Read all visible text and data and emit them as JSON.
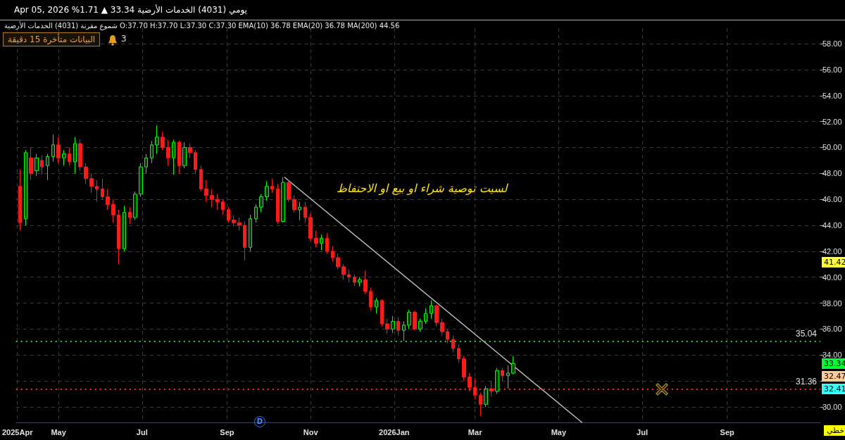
{
  "chart_data": {
    "type": "candlestick",
    "title": "يومي (4031) الخدمات الأرضية 33.34 ▲ 1.71% Apr 05, 2026",
    "subtitle": "شموع مقرنة (4031) الخدمات الأرضية O:37.70 H:37.70 L:37.30 C:37.30 EMA(10) 36.78 EMA(20) 36.78 MA(200) 44.56",
    "x": [
      "2025-04-03",
      "2025-04-07",
      "2025-04-11",
      "2025-04-15",
      "2025-04-19",
      "2025-04-23",
      "2025-04-27",
      "2025-05-01",
      "2025-05-05",
      "2025-05-09",
      "2025-05-13",
      "2025-05-17",
      "2025-05-21",
      "2025-05-25",
      "2025-05-29",
      "2025-06-02",
      "2025-06-06",
      "2025-06-10",
      "2025-06-14",
      "2025-06-18",
      "2025-06-22",
      "2025-06-26",
      "2025-06-30",
      "2025-07-04",
      "2025-07-08",
      "2025-07-12",
      "2025-07-16",
      "2025-07-20",
      "2025-07-24",
      "2025-07-28",
      "2025-08-01",
      "2025-08-05",
      "2025-08-09",
      "2025-08-13",
      "2025-08-17",
      "2025-08-21",
      "2025-08-25",
      "2025-08-29",
      "2025-09-02",
      "2025-09-06",
      "2025-09-10",
      "2025-09-14",
      "2025-09-18",
      "2025-09-22",
      "2025-09-26",
      "2025-09-30",
      "2025-10-04",
      "2025-10-08",
      "2025-10-12",
      "2025-10-16",
      "2025-10-20",
      "2025-10-24",
      "2025-10-28",
      "2025-11-01",
      "2025-11-05",
      "2025-11-09",
      "2025-11-13",
      "2025-11-17",
      "2025-11-21",
      "2025-11-25",
      "2025-11-29",
      "2025-12-03",
      "2025-12-07",
      "2025-12-11",
      "2025-12-15",
      "2025-12-19",
      "2025-12-23",
      "2025-12-27",
      "2025-12-31",
      "2026-01-04",
      "2026-01-08",
      "2026-01-12",
      "2026-01-16",
      "2026-01-20",
      "2026-01-24",
      "2026-01-28",
      "2026-02-01",
      "2026-02-05",
      "2026-02-09",
      "2026-02-13",
      "2026-02-17",
      "2026-02-21",
      "2026-02-25",
      "2026-03-01",
      "2026-03-05",
      "2026-03-09",
      "2026-03-13",
      "2026-03-17",
      "2026-03-21",
      "2026-03-25",
      "2026-03-29"
    ],
    "ohlc": [
      [
        47.0,
        48.3,
        43.6,
        44.2
      ],
      [
        44.5,
        49.8,
        44.0,
        49.6
      ],
      [
        49.2,
        50.0,
        47.5,
        48.0
      ],
      [
        48.2,
        49.5,
        47.8,
        49.2
      ],
      [
        49.0,
        49.4,
        47.9,
        48.5
      ],
      [
        48.6,
        49.5,
        47.5,
        49.3
      ],
      [
        49.3,
        51.0,
        48.9,
        50.2
      ],
      [
        50.2,
        50.8,
        48.8,
        49.2
      ],
      [
        49.2,
        49.8,
        48.6,
        49.5
      ],
      [
        49.5,
        50.0,
        48.6,
        48.9
      ],
      [
        48.9,
        50.8,
        48.0,
        50.3
      ],
      [
        50.3,
        50.6,
        48.2,
        48.5
      ],
      [
        48.5,
        48.8,
        47.2,
        47.6
      ],
      [
        47.6,
        48.0,
        46.5,
        47.0
      ],
      [
        47.0,
        47.5,
        45.8,
        46.8
      ],
      [
        46.8,
        47.6,
        46.0,
        46.2
      ],
      [
        46.2,
        46.8,
        45.2,
        45.6
      ],
      [
        45.6,
        46.0,
        44.2,
        44.8
      ],
      [
        44.8,
        45.2,
        41.0,
        42.2
      ],
      [
        42.2,
        45.5,
        42.0,
        45.0
      ],
      [
        45.0,
        45.4,
        44.1,
        44.6
      ],
      [
        44.6,
        46.6,
        44.4,
        46.4
      ],
      [
        46.4,
        48.8,
        46.2,
        48.5
      ],
      [
        48.5,
        49.5,
        48.0,
        49.2
      ],
      [
        49.2,
        50.5,
        48.8,
        50.2
      ],
      [
        50.2,
        51.7,
        49.5,
        50.8
      ],
      [
        50.8,
        51.2,
        49.8,
        50.0
      ],
      [
        50.0,
        50.6,
        48.6,
        49.2
      ],
      [
        49.2,
        50.6,
        47.9,
        50.4
      ],
      [
        50.4,
        50.5,
        48.0,
        48.6
      ],
      [
        48.6,
        50.4,
        48.4,
        50.0
      ],
      [
        50.0,
        50.3,
        49.2,
        49.6
      ],
      [
        49.6,
        49.8,
        48.0,
        48.3
      ],
      [
        48.3,
        48.6,
        46.6,
        46.8
      ],
      [
        46.8,
        47.5,
        45.8,
        46.3
      ],
      [
        46.3,
        46.8,
        45.4,
        46.0
      ],
      [
        46.0,
        46.4,
        45.2,
        45.8
      ],
      [
        45.8,
        46.0,
        44.8,
        45.2
      ],
      [
        45.2,
        45.4,
        44.2,
        44.4
      ],
      [
        44.4,
        44.8,
        43.9,
        44.2
      ],
      [
        44.2,
        44.6,
        43.6,
        44.0
      ],
      [
        44.0,
        44.3,
        41.3,
        42.3
      ],
      [
        42.3,
        44.8,
        42.0,
        44.5
      ],
      [
        44.5,
        45.6,
        44.2,
        45.4
      ],
      [
        45.4,
        46.4,
        45.0,
        46.2
      ],
      [
        46.2,
        47.4,
        45.9,
        47.0
      ],
      [
        47.0,
        47.6,
        46.5,
        46.8
      ],
      [
        46.8,
        47.2,
        44.1,
        44.3
      ],
      [
        44.3,
        47.7,
        44.2,
        47.3
      ],
      [
        47.3,
        47.5,
        45.8,
        46.0
      ],
      [
        46.0,
        46.3,
        45.0,
        45.2
      ],
      [
        45.2,
        45.8,
        44.4,
        45.4
      ],
      [
        45.4,
        45.8,
        44.2,
        44.6
      ],
      [
        44.6,
        44.9,
        42.8,
        43.0
      ],
      [
        43.0,
        43.6,
        42.3,
        42.6
      ],
      [
        42.6,
        43.3,
        42.1,
        43.0
      ],
      [
        43.0,
        43.4,
        41.8,
        42.0
      ],
      [
        42.0,
        42.4,
        41.2,
        41.5
      ],
      [
        41.5,
        41.8,
        40.6,
        40.8
      ],
      [
        40.8,
        41.0,
        39.8,
        40.2
      ],
      [
        40.2,
        40.6,
        39.6,
        40.0
      ],
      [
        40.0,
        40.2,
        39.3,
        39.6
      ],
      [
        39.6,
        40.0,
        39.3,
        39.8
      ],
      [
        39.8,
        40.5,
        38.7,
        38.9
      ],
      [
        38.9,
        39.2,
        37.4,
        37.7
      ],
      [
        37.7,
        38.4,
        37.2,
        38.2
      ],
      [
        38.2,
        38.3,
        36.2,
        36.4
      ],
      [
        36.4,
        36.8,
        35.6,
        36.0
      ],
      [
        36.0,
        37.0,
        35.7,
        36.6
      ],
      [
        36.6,
        36.9,
        35.5,
        35.9
      ],
      [
        35.9,
        36.6,
        35.1,
        36.3
      ],
      [
        36.3,
        37.5,
        36.0,
        37.3
      ],
      [
        37.3,
        37.4,
        35.9,
        36.0
      ],
      [
        36.0,
        36.8,
        35.8,
        36.6
      ],
      [
        36.6,
        37.6,
        36.4,
        37.2
      ],
      [
        37.2,
        38.2,
        36.8,
        37.8
      ],
      [
        37.8,
        37.9,
        36.2,
        36.5
      ],
      [
        36.5,
        36.8,
        35.5,
        35.8
      ],
      [
        35.8,
        36.0,
        34.9,
        35.2
      ],
      [
        35.2,
        35.5,
        34.2,
        34.5
      ],
      [
        34.5,
        34.8,
        33.4,
        33.7
      ],
      [
        33.7,
        33.9,
        32.0,
        32.3
      ],
      [
        32.3,
        32.6,
        31.2,
        31.5
      ],
      [
        31.5,
        32.2,
        30.6,
        30.9
      ],
      [
        30.9,
        31.1,
        29.3,
        30.2
      ],
      [
        30.2,
        31.6,
        30.0,
        31.4
      ],
      [
        31.4,
        32.0,
        30.8,
        31.2
      ],
      [
        31.2,
        33.0,
        31.0,
        32.8
      ],
      [
        32.8,
        33.0,
        32.0,
        32.4
      ],
      [
        32.4,
        33.2,
        31.4,
        32.6
      ],
      [
        32.6,
        33.9,
        32.5,
        33.34
      ]
    ],
    "series": [
      {
        "type": "line",
        "color": "#c8c8c8",
        "x": [
          "2025-10-13",
          "2026-05-18"
        ],
        "values": [
          47.7,
          28.8
        ]
      }
    ],
    "xlim": [
      "2025-03-31",
      "2026-11-08"
    ],
    "xticks": [
      {
        "value": "2025-04-01",
        "label": "2025Apr"
      },
      {
        "value": "2025-05-01",
        "label": "May"
      },
      {
        "value": "2025-07-01",
        "label": "Jul"
      },
      {
        "value": "2025-09-01",
        "label": "Sep"
      },
      {
        "value": "2025-11-01",
        "label": "Nov"
      },
      {
        "value": "2026-01-01",
        "label": "2026Jan"
      },
      {
        "value": "2026-03-01",
        "label": "Mar"
      },
      {
        "value": "2026-05-01",
        "label": "May"
      },
      {
        "value": "2026-07-01",
        "label": "Jul"
      },
      {
        "value": "2026-09-01",
        "label": "Sep"
      }
    ],
    "ylim": [
      28.8,
      59.2
    ],
    "yticks": [
      {
        "value": 30,
        "label": "30.00"
      },
      {
        "value": 32,
        "label": null
      },
      {
        "value": 34,
        "label": "34.00"
      },
      {
        "value": 36,
        "label": "36.00"
      },
      {
        "value": 38,
        "label": "38.00"
      },
      {
        "value": 40,
        "label": "40.00"
      },
      {
        "value": 42,
        "label": "42.00"
      },
      {
        "value": 44,
        "label": "44.00"
      },
      {
        "value": 46,
        "label": "46.00"
      },
      {
        "value": 48,
        "label": "48.00"
      },
      {
        "value": 50,
        "label": "50.00"
      },
      {
        "value": 52,
        "label": "52.00"
      },
      {
        "value": 54,
        "label": "54.00"
      },
      {
        "value": 56,
        "label": "56.00"
      },
      {
        "value": 58,
        "label": "58.00"
      }
    ],
    "grid": true,
    "ref_lines": [
      {
        "axis": "y",
        "value": 35.04,
        "label": "35.04",
        "color": "#2ecc40",
        "line_style": "dotted"
      },
      {
        "axis": "y",
        "value": 31.36,
        "label": "31.36",
        "color": "#ff3030",
        "line_style": "dotted"
      }
    ],
    "annotations": [
      "لسيت توصية شراء او بيع او الاحتفاظ",
      "البيانات متأخرة 15 دقيقة",
      "3",
      "D",
      "خطي",
      "41.42",
      "33.34",
      "32.47",
      "32.41"
    ]
  }
}
